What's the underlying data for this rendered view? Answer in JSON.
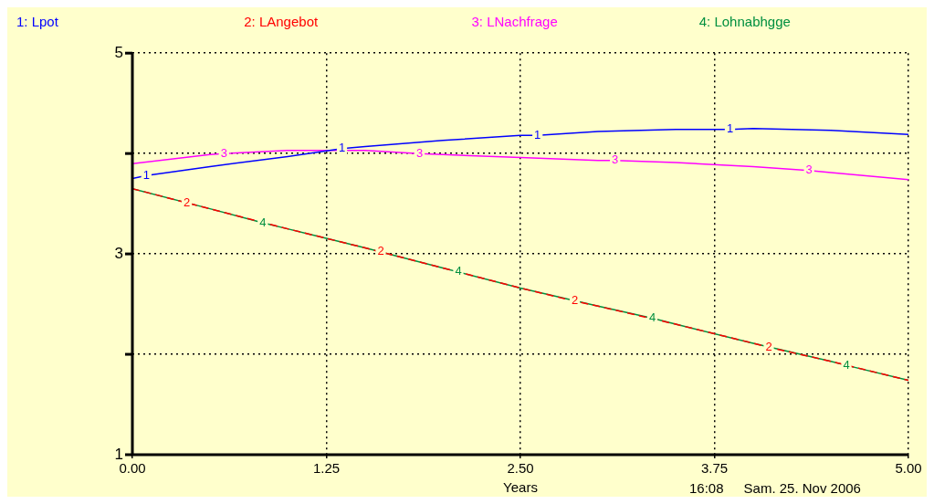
{
  "chart_data": {
    "type": "line",
    "xlabel": "Years",
    "xlim": [
      0,
      5
    ],
    "xticks": [
      {
        "value": 0,
        "label": "0.00"
      },
      {
        "value": 1.25,
        "label": "1.25"
      },
      {
        "value": 2.5,
        "label": "2.50"
      },
      {
        "value": 3.75,
        "label": "3.75"
      },
      {
        "value": 5,
        "label": "5.00"
      }
    ],
    "ylim": [
      1,
      5
    ],
    "yticks": [
      1,
      {
        "value": 2,
        "label": null
      },
      3,
      {
        "value": 4,
        "label": null
      },
      5
    ],
    "grid": true,
    "legend": "top",
    "line_style": "solid",
    "marker": "none",
    "series": [
      {
        "name": "1: Lpot",
        "color": "#0000ff",
        "x": [
          0,
          0.09,
          0.5,
          1,
          1.35,
          1.5,
          2,
          2.5,
          2.61,
          3,
          3.5,
          3.85,
          4,
          4.5,
          5
        ],
        "values": [
          3.75,
          3.78,
          3.87,
          3.97,
          4.05,
          4.07,
          4.13,
          4.18,
          4.18,
          4.22,
          4.24,
          4.24,
          4.25,
          4.23,
          4.19
        ]
      },
      {
        "name": "2: LAngebot",
        "color": "#ff0000",
        "line_style": "dashed",
        "x": [
          0,
          0.35,
          0.5,
          1,
          1.5,
          1.6,
          2,
          2.5,
          2.85,
          3,
          3.5,
          4,
          4.1,
          4.5,
          5
        ],
        "values": [
          3.65,
          3.51,
          3.45,
          3.25,
          3.06,
          3.02,
          2.86,
          2.66,
          2.53,
          2.48,
          2.3,
          2.11,
          2.07,
          1.93,
          1.74
        ]
      },
      {
        "name": "3: LNachfrage",
        "color": "#ff00ff",
        "x": [
          0,
          0.5,
          0.59,
          1,
          1.5,
          1.85,
          2,
          2.5,
          3,
          3.11,
          3.5,
          4,
          4.36,
          4.5,
          5
        ],
        "values": [
          3.9,
          3.99,
          4.0,
          4.03,
          4.03,
          4.0,
          3.99,
          3.96,
          3.93,
          3.93,
          3.91,
          3.87,
          3.83,
          3.81,
          3.74
        ]
      },
      {
        "name": "4: Lohnabhgge",
        "color": "#008f3f",
        "x": [
          0,
          0.5,
          0.84,
          1,
          1.5,
          2,
          2.1,
          2.5,
          3,
          3.35,
          3.5,
          4,
          4.5,
          4.6,
          5
        ],
        "values": [
          3.65,
          3.45,
          3.31,
          3.25,
          3.06,
          2.86,
          2.82,
          2.66,
          2.48,
          2.36,
          2.3,
          2.11,
          1.93,
          1.89,
          1.74
        ]
      }
    ],
    "annotations": [
      {
        "text": "1",
        "x": 0.09,
        "y": 3.78
      },
      {
        "text": "1",
        "x": 1.35,
        "y": 4.05
      },
      {
        "text": "1",
        "x": 2.61,
        "y": 4.18
      },
      {
        "text": "1",
        "x": 3.85,
        "y": 4.24
      },
      {
        "text": "2",
        "x": 0.35,
        "y": 3.51
      },
      {
        "text": "2",
        "x": 1.6,
        "y": 3.02
      },
      {
        "text": "2",
        "x": 2.85,
        "y": 2.53
      },
      {
        "text": "2",
        "x": 4.1,
        "y": 2.07
      },
      {
        "text": "3",
        "x": 0.59,
        "y": 4.0
      },
      {
        "text": "3",
        "x": 1.85,
        "y": 4.0
      },
      {
        "text": "3",
        "x": 3.11,
        "y": 3.93
      },
      {
        "text": "3",
        "x": 4.36,
        "y": 3.83
      },
      {
        "text": "4",
        "x": 0.84,
        "y": 3.31
      },
      {
        "text": "4",
        "x": 2.1,
        "y": 2.82
      },
      {
        "text": "4",
        "x": 3.35,
        "y": 2.36
      },
      {
        "text": "4",
        "x": 4.6,
        "y": 1.89
      },
      "16:08",
      "Sam. 25. Nov 2006"
    ]
  }
}
